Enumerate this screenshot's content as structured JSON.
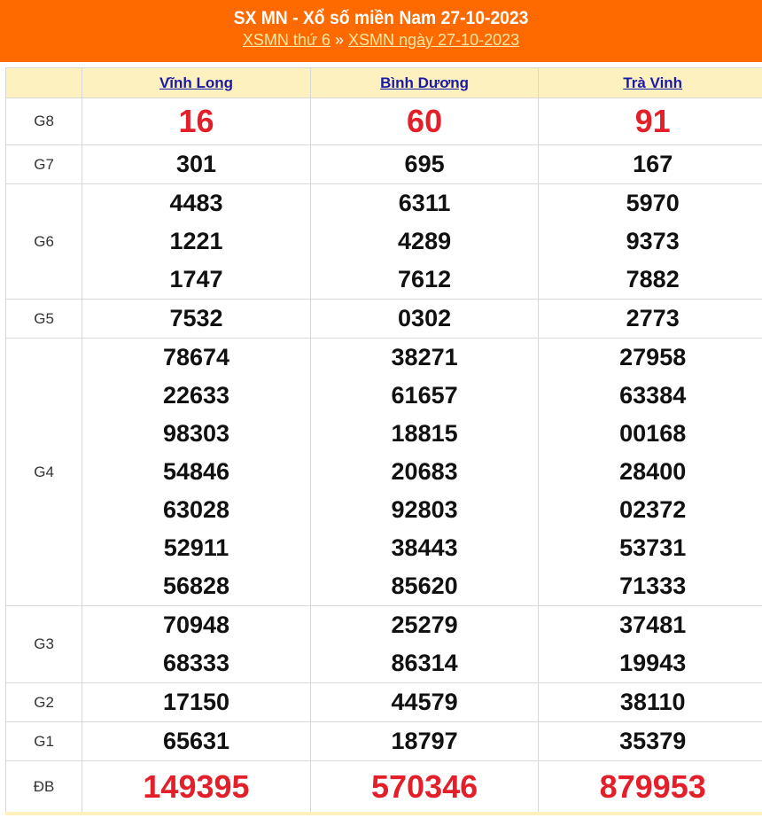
{
  "header": {
    "title": "SX MN - Xổ số miền Nam 27-10-2023",
    "link_weekday": "XSMN thứ 6",
    "separator": "»",
    "link_date": "XSMN ngày 27-10-2023"
  },
  "provinces": [
    "Vĩnh Long",
    "Bình Dương",
    "Trà Vinh"
  ],
  "colors": {
    "header_bg": "#ff6a00",
    "highlight": "#e3202a",
    "table_header_bg": "#fdf1c0"
  },
  "prizes": [
    {
      "label": "G8",
      "style": "red",
      "values": [
        [
          "16"
        ],
        [
          "60"
        ],
        [
          "91"
        ]
      ]
    },
    {
      "label": "G7",
      "values": [
        [
          "301"
        ],
        [
          "695"
        ],
        [
          "167"
        ]
      ]
    },
    {
      "label": "G6",
      "values": [
        [
          "4483",
          "1221",
          "1747"
        ],
        [
          "6311",
          "4289",
          "7612"
        ],
        [
          "5970",
          "9373",
          "7882"
        ]
      ]
    },
    {
      "label": "G5",
      "values": [
        [
          "7532"
        ],
        [
          "0302"
        ],
        [
          "2773"
        ]
      ]
    },
    {
      "label": "G4",
      "values": [
        [
          "78674",
          "22633",
          "98303",
          "54846",
          "63028",
          "52911",
          "56828"
        ],
        [
          "38271",
          "61657",
          "18815",
          "20683",
          "92803",
          "38443",
          "85620"
        ],
        [
          "27958",
          "63384",
          "00168",
          "28400",
          "02372",
          "53731",
          "71333"
        ]
      ]
    },
    {
      "label": "G3",
      "values": [
        [
          "70948",
          "68333"
        ],
        [
          "25279",
          "86314"
        ],
        [
          "37481",
          "19943"
        ]
      ]
    },
    {
      "label": "G2",
      "values": [
        [
          "17150"
        ],
        [
          "44579"
        ],
        [
          "38110"
        ]
      ]
    },
    {
      "label": "G1",
      "values": [
        [
          "65631"
        ],
        [
          "18797"
        ],
        [
          "35379"
        ]
      ]
    },
    {
      "label": "ĐB",
      "style": "db",
      "values": [
        [
          "149395"
        ],
        [
          "570346"
        ],
        [
          "879953"
        ]
      ]
    }
  ]
}
